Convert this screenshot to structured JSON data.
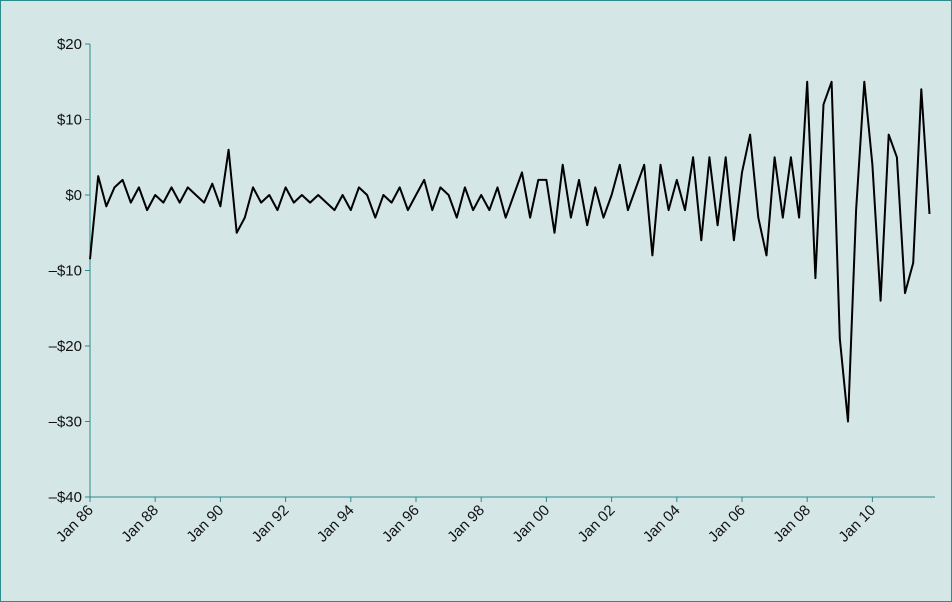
{
  "chart_data": {
    "type": "line",
    "categories": [
      "Jan 86",
      null,
      null,
      null,
      null,
      null,
      null,
      null,
      "Jan 88",
      null,
      null,
      null,
      null,
      null,
      null,
      null,
      "Jan 90",
      null,
      null,
      null,
      null,
      null,
      null,
      null,
      "Jan 92",
      null,
      null,
      null,
      null,
      null,
      null,
      null,
      "Jan 94",
      null,
      null,
      null,
      null,
      null,
      null,
      null,
      "Jan 96",
      null,
      null,
      null,
      null,
      null,
      null,
      null,
      "Jan 98",
      null,
      null,
      null,
      null,
      null,
      null,
      null,
      "Jan 00",
      null,
      null,
      null,
      null,
      null,
      null,
      null,
      "Jan 02",
      null,
      null,
      null,
      null,
      null,
      null,
      null,
      "Jan 04",
      null,
      null,
      null,
      null,
      null,
      null,
      null,
      "Jan 06",
      null,
      null,
      null,
      null,
      null,
      null,
      null,
      "Jan 08",
      null,
      null,
      null,
      null,
      null,
      null,
      null,
      "Jan 10",
      null,
      null,
      null,
      null,
      null,
      null,
      null
    ],
    "series": [
      {
        "color": "#000000",
        "values": [
          -8.5,
          2.5,
          -1.5,
          1,
          2,
          -1,
          1,
          -2,
          0,
          -1,
          1,
          -1,
          1,
          0,
          -1,
          1.5,
          -1.5,
          6,
          -5,
          -3,
          1,
          -1,
          0,
          -2,
          1,
          -1,
          0,
          -1,
          0,
          -1,
          -2,
          0,
          -2,
          1,
          0,
          -3,
          0,
          -1,
          1,
          -2,
          0,
          2,
          -2,
          1,
          0,
          -3,
          1,
          -2,
          0,
          -2,
          1,
          -3,
          0,
          3,
          -3,
          2,
          2,
          -5,
          4,
          -3,
          2,
          -4,
          1,
          -3,
          0,
          4,
          -2,
          1,
          4,
          -8,
          4,
          -2,
          2,
          -2,
          5,
          -6,
          5,
          -4,
          5,
          -6,
          3,
          8,
          -3,
          -8,
          5,
          -3,
          5,
          -3,
          15,
          -11,
          12,
          15,
          -19,
          -30,
          -2,
          15,
          4,
          -14,
          8,
          5,
          -13,
          -9,
          14,
          -2.5
        ]
      }
    ],
    "ylim": [
      -40,
      20
    ],
    "yticks": [
      {
        "value": -40,
        "label": "–$40"
      },
      {
        "value": -30,
        "label": "–$30"
      },
      {
        "value": -20,
        "label": "–$20"
      },
      {
        "value": -10,
        "label": "–$10"
      },
      {
        "value": 0,
        "label": "$0"
      },
      {
        "value": 10,
        "label": "$10"
      },
      {
        "value": 20,
        "label": "$20"
      }
    ]
  }
}
